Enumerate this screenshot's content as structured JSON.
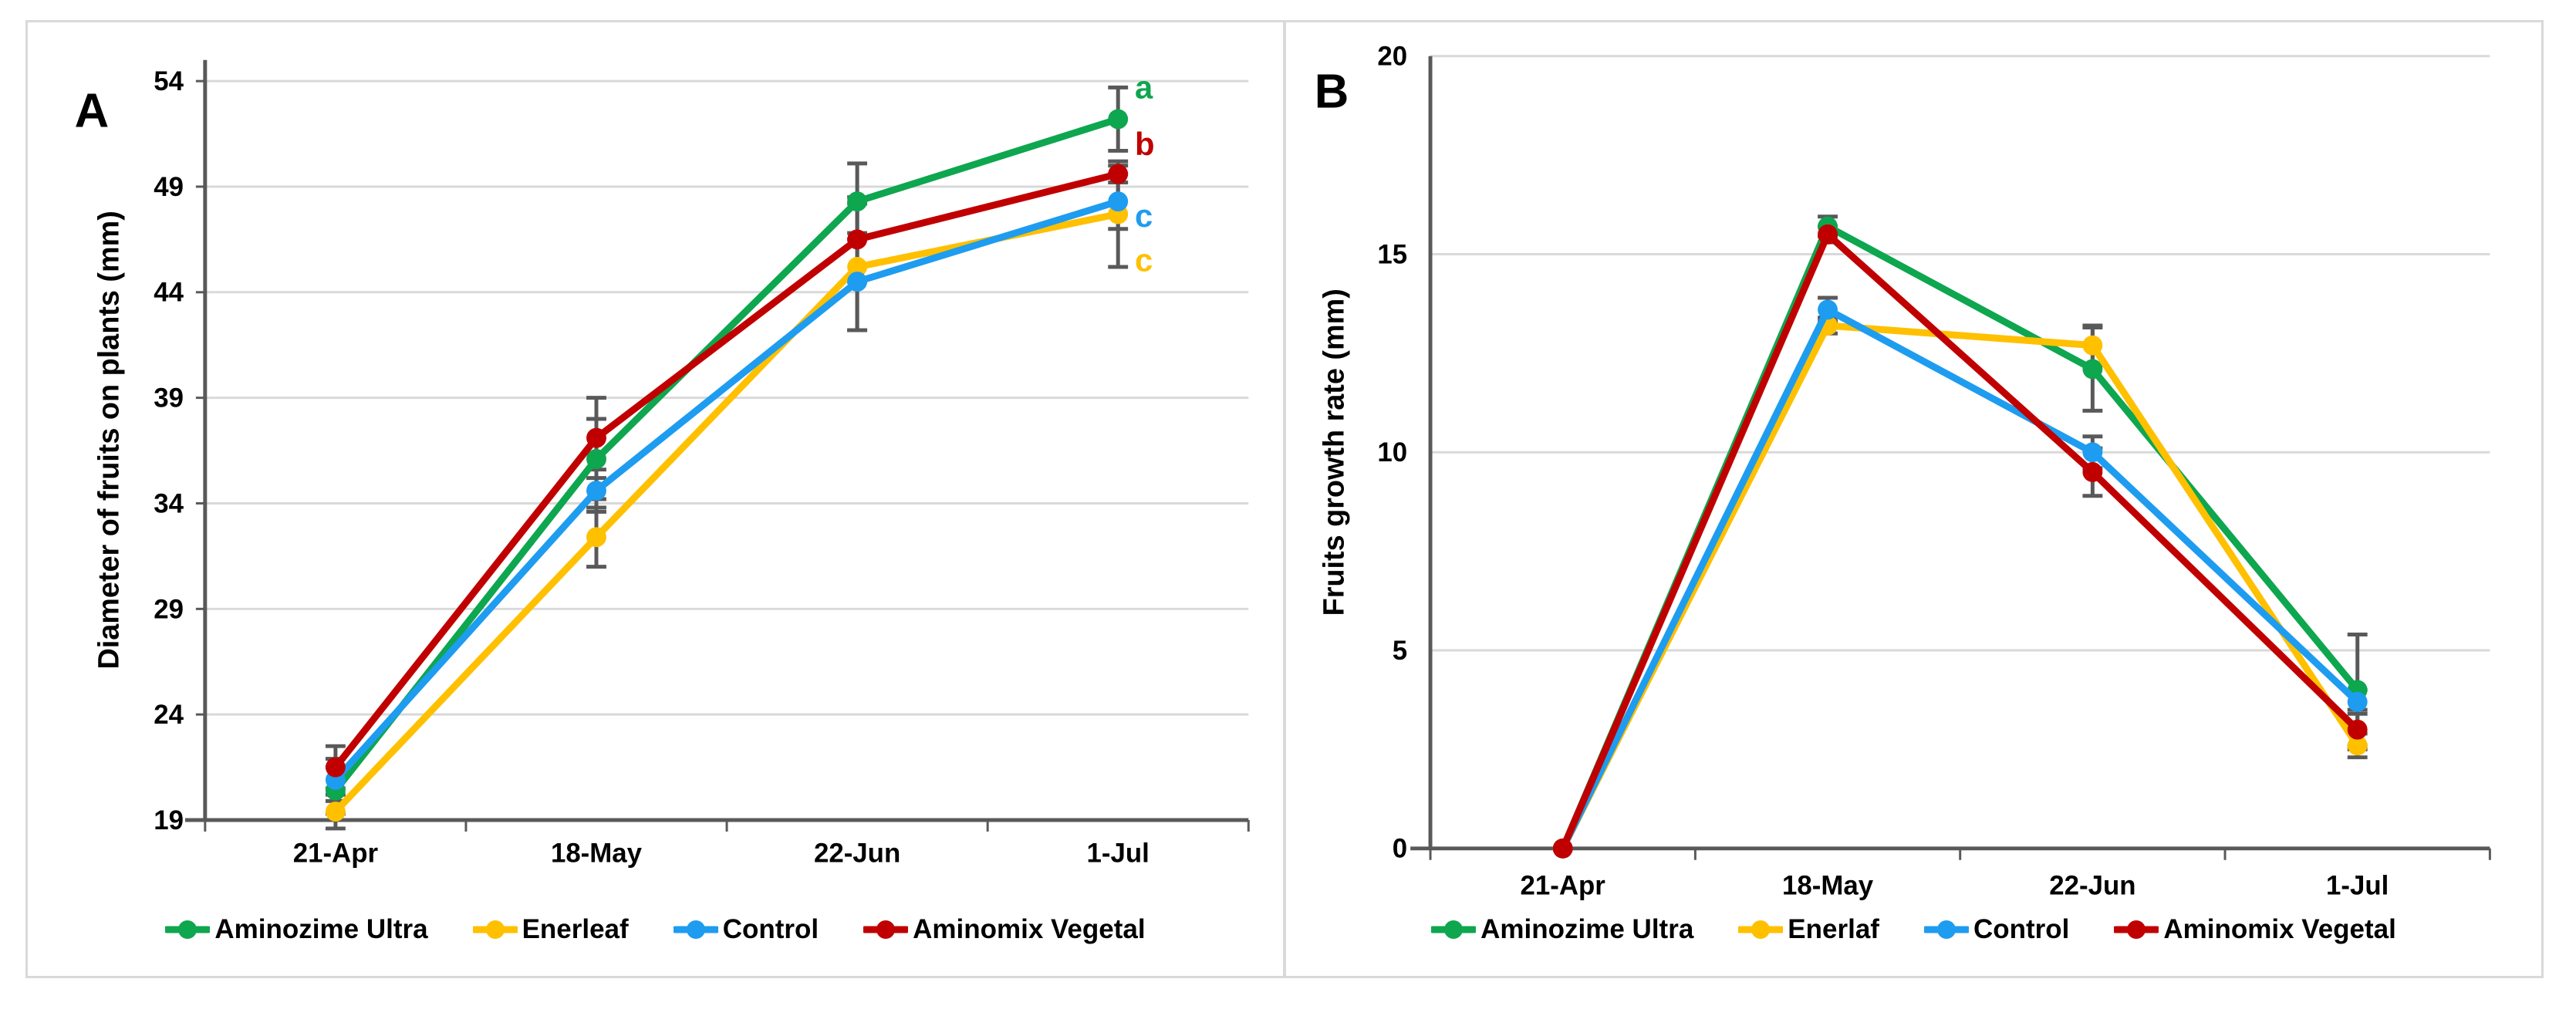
{
  "chart_data": [
    {
      "type": "line",
      "panel_label": "A",
      "ylabel": "Diameter of fruits on plants (mm)",
      "categories": [
        "21-Apr",
        "18-May",
        "22-Jun",
        "1-Jul"
      ],
      "ylim": [
        19,
        55
      ],
      "yticks": [
        19,
        24,
        29,
        34,
        39,
        44,
        49,
        54
      ],
      "grid": true,
      "legend_position": "bottom",
      "series": [
        {
          "name": "Aminozime Ultra",
          "color": "#0EA64F",
          "values": [
            20.4,
            36.1,
            48.3,
            52.2
          ],
          "errors": [
            1.1,
            1.9,
            1.8,
            1.5
          ]
        },
        {
          "name": "Enerleaf",
          "color": "#FFC000",
          "values": [
            19.4,
            32.4,
            45.2,
            47.7
          ],
          "errors": [
            0.8,
            1.4,
            3.0,
            2.5
          ]
        },
        {
          "name": "Control",
          "color": "#1E9CF0",
          "values": [
            20.9,
            34.6,
            44.5,
            48.3
          ],
          "errors": [
            1.0,
            1.0,
            2.3,
            1.3
          ]
        },
        {
          "name": "Aminomix Vegetal",
          "color": "#C00000",
          "values": [
            21.5,
            37.1,
            46.5,
            49.6
          ],
          "errors": [
            1.0,
            1.9,
            2.0,
            0.4
          ]
        }
      ],
      "sig_letters": [
        {
          "label": "a",
          "color": "#0EA64F",
          "value": 53.7
        },
        {
          "label": "b",
          "color": "#C00000",
          "value": 51.0
        },
        {
          "label": "c",
          "color": "#1E9CF0",
          "value": 47.6
        },
        {
          "label": "c",
          "color": "#FFC000",
          "value": 45.5
        }
      ],
      "legend": [
        "Aminozime Ultra",
        "Enerleaf",
        "Control",
        "Aminomix Vegetal"
      ]
    },
    {
      "type": "line",
      "panel_label": "B",
      "ylabel": "Fruits growth rate (mm)",
      "categories": [
        "21-Apr",
        "18-May",
        "22-Jun",
        "1-Jul"
      ],
      "ylim": [
        0,
        20
      ],
      "yticks": [
        0,
        5,
        10,
        15,
        20
      ],
      "grid": true,
      "legend_position": "bottom",
      "series": [
        {
          "name": "Aminozime Ultra",
          "color": "#0EA64F",
          "values": [
            0,
            15.7,
            12.1,
            4.0
          ],
          "errors": [
            0,
            0.25,
            1.05,
            1.4
          ]
        },
        {
          "name": "Enerlaf",
          "color": "#FFC000",
          "values": [
            0,
            13.2,
            12.7,
            2.6
          ],
          "errors": [
            0,
            0.2,
            0.5,
            0.3
          ]
        },
        {
          "name": "Control",
          "color": "#1E9CF0",
          "values": [
            0,
            13.6,
            10.0,
            3.7
          ],
          "errors": [
            0,
            0.3,
            0.4,
            0.3
          ]
        },
        {
          "name": "Aminomix Vegetal",
          "color": "#C00000",
          "values": [
            0,
            15.5,
            9.5,
            3.0
          ],
          "errors": [
            0,
            0.2,
            0.6,
            0.5
          ]
        }
      ],
      "sig_letters": [],
      "legend": [
        "Aminozime Ultra",
        "Enerlaf",
        "Control",
        "Aminomix Vegetal"
      ]
    }
  ],
  "colors": {
    "axis": "#595959",
    "gridline": "#D9D9D9",
    "error_bar": "#595959",
    "panel_border": "#D9D9D9",
    "background": "#FFFFFF"
  }
}
